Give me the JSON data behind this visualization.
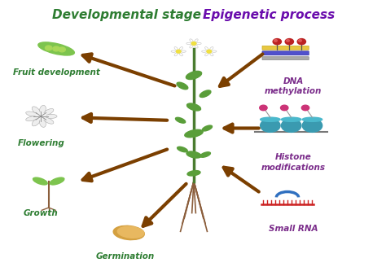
{
  "title_left": "Developmental stage",
  "title_right": "Epigenetic process",
  "title_left_color": "#2e7d32",
  "title_right_color": "#6a0dad",
  "bg_color": "#ffffff",
  "label_left_color": "#2e7d32",
  "label_right_color": "#7b2d8b",
  "arrow_color": "#7B3F00",
  "arrow_lw": 3.0,
  "arrows_out": [
    [
      0.45,
      0.68,
      0.2,
      0.8
    ],
    [
      0.43,
      0.55,
      0.2,
      0.56
    ],
    [
      0.43,
      0.44,
      0.2,
      0.32
    ],
    [
      0.48,
      0.31,
      0.36,
      0.14
    ]
  ],
  "arrows_in": [
    [
      0.68,
      0.8,
      0.56,
      0.67
    ],
    [
      0.67,
      0.52,
      0.57,
      0.52
    ],
    [
      0.67,
      0.28,
      0.57,
      0.38
    ]
  ]
}
